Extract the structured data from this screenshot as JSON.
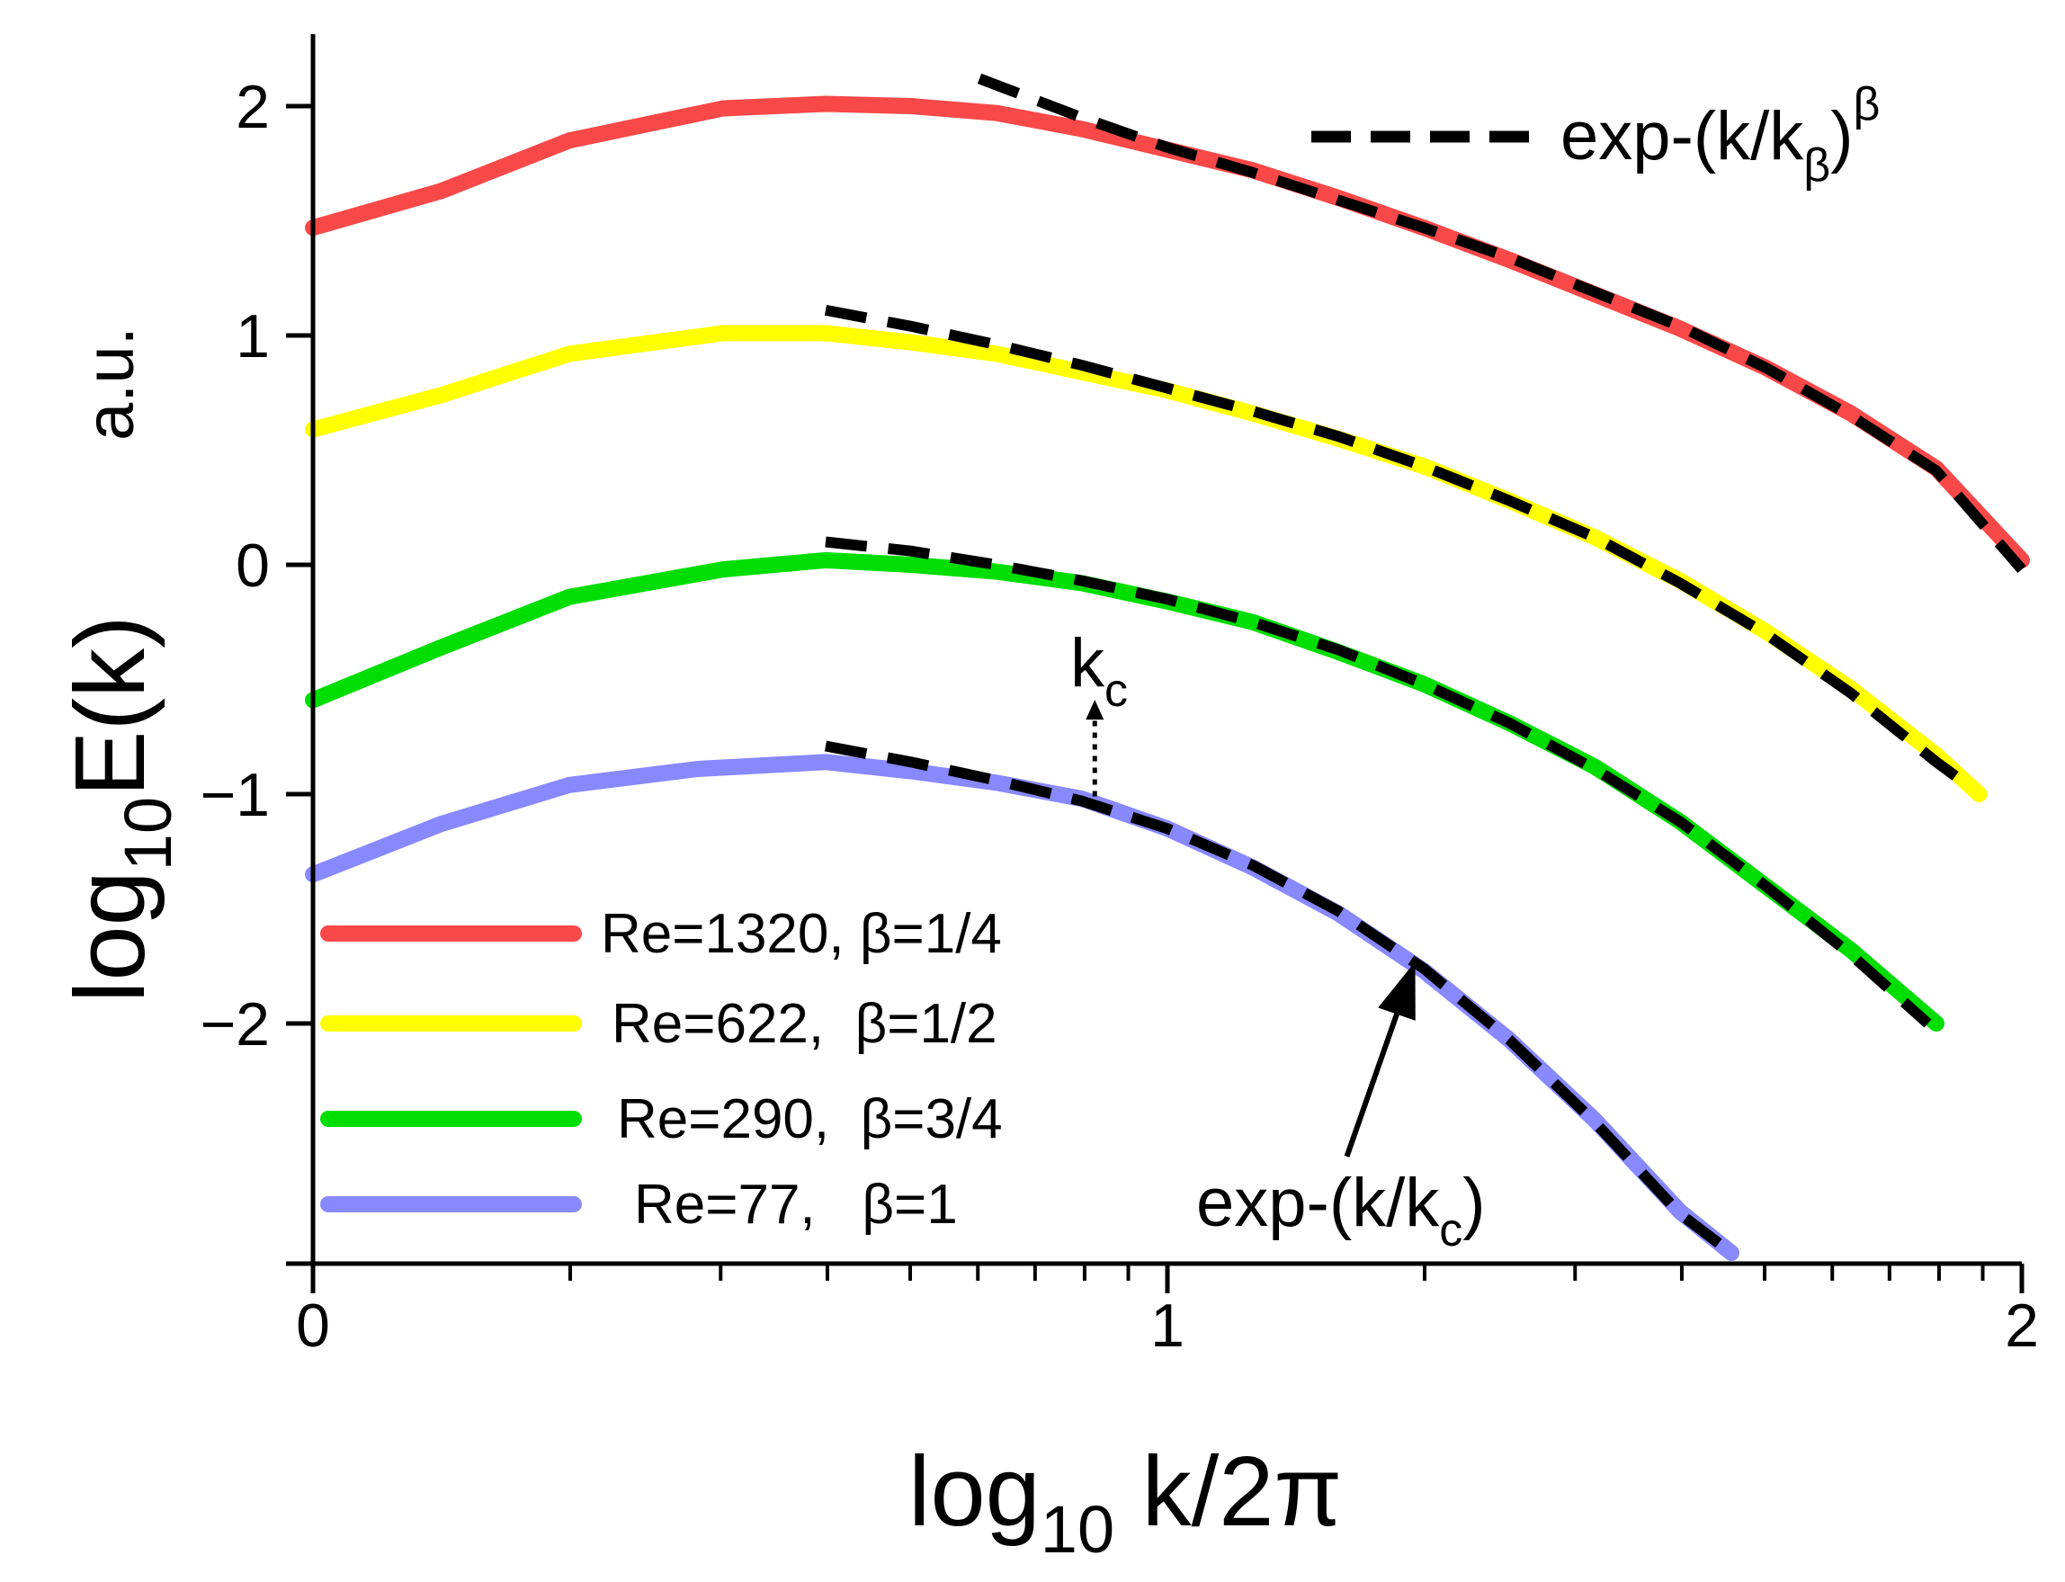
{
  "chart_data": {
    "type": "line",
    "xlabel": {
      "main": "log",
      "sub": "10",
      "rest": " k/2π"
    },
    "ylabel": {
      "main": "log",
      "sub": "10",
      "rest": "E(k)",
      "units": "a.u."
    },
    "xlim": [
      0,
      2
    ],
    "ylim": [
      -3,
      2.3
    ],
    "x_ticks": [
      0,
      1,
      2
    ],
    "x_tick_labels": [
      "0",
      "1",
      "2"
    ],
    "x_minor_log": true,
    "y_ticks": [
      2,
      1,
      0,
      -1,
      -2
    ],
    "y_tick_labels": [
      "2",
      "1",
      "0",
      "−1",
      "−2"
    ],
    "grid": false,
    "legend_position": "bottom-left",
    "series": [
      {
        "name": "Re=1320, β=1/4",
        "color": "#f94848",
        "x": [
          0.0,
          0.15,
          0.3,
          0.48,
          0.6,
          0.7,
          0.8,
          0.9,
          1.0,
          1.1,
          1.2,
          1.3,
          1.4,
          1.5,
          1.6,
          1.7,
          1.8,
          1.9,
          2.0
        ],
        "y": [
          1.47,
          1.63,
          1.85,
          1.99,
          2.01,
          2.0,
          1.97,
          1.9,
          1.81,
          1.72,
          1.6,
          1.47,
          1.33,
          1.18,
          1.03,
          0.86,
          0.66,
          0.42,
          0.02
        ]
      },
      {
        "name": "Re=622,  β=1/2",
        "color": "#ffff00",
        "x": [
          0.0,
          0.15,
          0.3,
          0.48,
          0.6,
          0.7,
          0.8,
          0.9,
          1.0,
          1.1,
          1.2,
          1.3,
          1.4,
          1.5,
          1.6,
          1.7,
          1.8,
          1.9,
          1.95
        ],
        "y": [
          0.59,
          0.74,
          0.92,
          1.01,
          1.01,
          0.97,
          0.92,
          0.84,
          0.76,
          0.66,
          0.55,
          0.43,
          0.28,
          0.12,
          -0.07,
          -0.29,
          -0.54,
          -0.83,
          -1.0
        ]
      },
      {
        "name": "Re=290,  β=3/4",
        "color": "#00dd00",
        "x": [
          0.0,
          0.15,
          0.3,
          0.48,
          0.6,
          0.7,
          0.8,
          0.9,
          1.0,
          1.1,
          1.2,
          1.3,
          1.4,
          1.5,
          1.6,
          1.7,
          1.8,
          1.9
        ],
        "y": [
          -0.59,
          -0.36,
          -0.14,
          -0.02,
          0.02,
          0.0,
          -0.03,
          -0.08,
          -0.16,
          -0.25,
          -0.38,
          -0.52,
          -0.69,
          -0.88,
          -1.12,
          -1.4,
          -1.68,
          -2.0
        ]
      },
      {
        "name": "Re=77,   β=1",
        "color": "#8888ff",
        "x": [
          0.0,
          0.15,
          0.3,
          0.45,
          0.6,
          0.7,
          0.8,
          0.9,
          1.0,
          1.1,
          1.2,
          1.3,
          1.4,
          1.5,
          1.6,
          1.66
        ],
        "y": [
          -1.35,
          -1.13,
          -0.96,
          -0.89,
          -0.86,
          -0.9,
          -0.95,
          -1.02,
          -1.15,
          -1.32,
          -1.52,
          -1.77,
          -2.07,
          -2.42,
          -2.82,
          -3.0
        ]
      }
    ],
    "fits": [
      {
        "name": "exp-(k/kβ)^β fit, β=1/4",
        "x": [
          0.78,
          0.9,
          1.0,
          1.1,
          1.2,
          1.3,
          1.4,
          1.5,
          1.6,
          1.7,
          1.8,
          1.9,
          2.0
        ],
        "y": [
          2.12,
          1.95,
          1.82,
          1.71,
          1.59,
          1.47,
          1.34,
          1.19,
          1.04,
          0.86,
          0.65,
          0.41,
          -0.02
        ]
      },
      {
        "name": "exp-(k/kβ)^β fit, β=1/2",
        "x": [
          0.6,
          0.7,
          0.8,
          0.9,
          1.0,
          1.1,
          1.2,
          1.3,
          1.4,
          1.5,
          1.6,
          1.7,
          1.8,
          1.9,
          1.94
        ],
        "y": [
          1.11,
          1.04,
          0.96,
          0.87,
          0.77,
          0.67,
          0.56,
          0.43,
          0.28,
          0.12,
          -0.08,
          -0.3,
          -0.56,
          -0.86,
          -0.97
        ]
      },
      {
        "name": "exp-(k/kβ)^β fit, β=3/4",
        "x": [
          0.6,
          0.7,
          0.8,
          0.9,
          1.0,
          1.1,
          1.2,
          1.3,
          1.4,
          1.5,
          1.6,
          1.7,
          1.8,
          1.89
        ],
        "y": [
          0.1,
          0.06,
          0.0,
          -0.07,
          -0.15,
          -0.25,
          -0.37,
          -0.52,
          -0.69,
          -0.89,
          -1.12,
          -1.4,
          -1.7,
          -2.0
        ]
      },
      {
        "name": "exp-(k/kc) fit",
        "x": [
          0.6,
          0.7,
          0.8,
          0.9,
          1.0,
          1.1,
          1.2,
          1.3,
          1.4,
          1.5,
          1.6,
          1.66
        ],
        "y": [
          -0.79,
          -0.86,
          -0.94,
          -1.03,
          -1.15,
          -1.31,
          -1.51,
          -1.76,
          -2.07,
          -2.43,
          -2.83,
          -3.0
        ]
      }
    ],
    "annotations": {
      "fit_legend": {
        "main": "exp-(k/k",
        "sub": "β",
        "close": ")",
        "sup": "β"
      },
      "kc_label": {
        "main": "k",
        "sub": "c"
      },
      "kc_point": {
        "x": 0.915,
        "y": -1.01,
        "to_y": -0.62
      },
      "exp_c_label": {
        "main": "exp-(k/k",
        "sub": "c",
        "close": ")"
      },
      "exp_c_arrow": {
        "from_x": 1.21,
        "from_y": -2.58,
        "to_x": 1.29,
        "to_y": -1.73
      }
    }
  }
}
